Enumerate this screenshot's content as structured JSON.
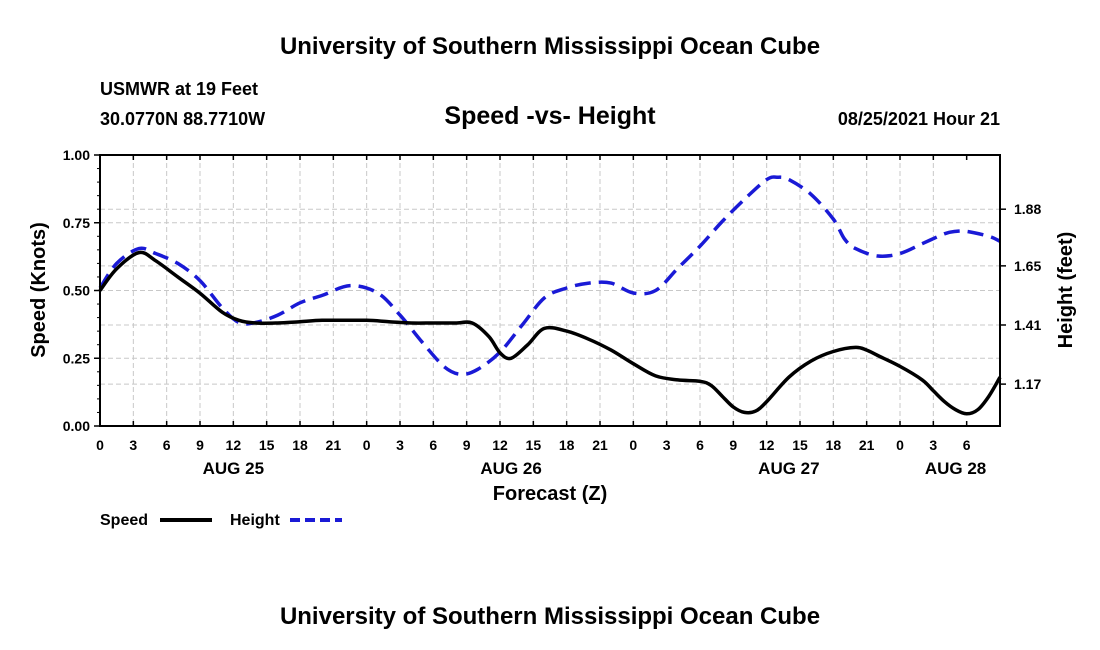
{
  "header": {
    "title_top": "University of Southern Mississippi Ocean Cube",
    "station": "USMWR at 19 Feet",
    "coords": "30.0770N  88.7710W",
    "chart_title": "Speed -vs- Height",
    "timestamp": "08/25/2021 Hour 21",
    "title_bottom": "University of Southern Mississippi Ocean Cube"
  },
  "chart_data": {
    "type": "line",
    "title": "Speed -vs- Height",
    "xlabel": "Forecast (Z)",
    "ylabel_left": "Speed (Knots)",
    "ylabel_right": "Height (feet)",
    "x_range_hours": [
      0,
      81
    ],
    "x_tick_labels": [
      "0",
      "3",
      "6",
      "9",
      "12",
      "15",
      "18",
      "21",
      "0",
      "3",
      "6",
      "9",
      "12",
      "15",
      "18",
      "21",
      "0",
      "3",
      "6",
      "9",
      "12",
      "15",
      "18",
      "21",
      "0",
      "3",
      "6"
    ],
    "day_labels": [
      {
        "label": "AUG 25",
        "hour": 12
      },
      {
        "label": "AUG 26",
        "hour": 37
      },
      {
        "label": "AUG 27",
        "hour": 62
      },
      {
        "label": "AUG 28",
        "hour": 77
      }
    ],
    "left_axis": {
      "min": 0,
      "max": 1,
      "ticks": [
        0,
        0.25,
        0.5,
        0.75,
        1.0
      ],
      "tick_labels": [
        "0.00",
        "0.25",
        "0.50",
        "0.75",
        "1.00"
      ]
    },
    "right_axis": {
      "min": 1.0,
      "max": 2.1,
      "ticks": [
        1.17,
        1.41,
        1.65,
        1.88
      ],
      "tick_labels": [
        "1.17",
        "1.41",
        "1.65",
        "1.88"
      ]
    },
    "grid": true,
    "series": [
      {
        "name": "Speed",
        "axis": "left",
        "color": "#000000",
        "dash": "solid",
        "x": [
          0,
          1.5,
          3.5,
          5,
          7,
          9,
          11,
          12.5,
          14,
          16,
          18,
          20,
          22,
          24,
          26,
          28,
          30,
          32,
          33.5,
          35,
          36,
          37,
          38.5,
          40,
          42,
          44,
          46,
          48,
          50,
          52,
          54,
          55,
          56,
          57,
          58,
          59,
          60,
          62,
          64,
          66,
          68,
          69,
          70,
          72,
          74,
          75,
          76,
          77,
          78,
          79,
          80,
          81
        ],
        "y": [
          0.5,
          0.58,
          0.64,
          0.61,
          0.55,
          0.49,
          0.42,
          0.39,
          0.38,
          0.38,
          0.385,
          0.39,
          0.39,
          0.39,
          0.385,
          0.38,
          0.38,
          0.38,
          0.38,
          0.33,
          0.27,
          0.25,
          0.3,
          0.36,
          0.35,
          0.32,
          0.28,
          0.23,
          0.185,
          0.17,
          0.165,
          0.15,
          0.11,
          0.07,
          0.05,
          0.055,
          0.09,
          0.18,
          0.24,
          0.275,
          0.29,
          0.28,
          0.26,
          0.22,
          0.17,
          0.13,
          0.09,
          0.06,
          0.045,
          0.06,
          0.11,
          0.18
        ]
      },
      {
        "name": "Height",
        "axis": "right",
        "color": "#1a1ad6",
        "dash": "dashed",
        "x": [
          0,
          1.5,
          3.5,
          5,
          7,
          9,
          11,
          12.5,
          14,
          16,
          18,
          20,
          22.5,
          25,
          27,
          29,
          31,
          32.5,
          34,
          36,
          38,
          40,
          42,
          44,
          46,
          48,
          50,
          52,
          54,
          56,
          58,
          60,
          61,
          62,
          64,
          66,
          67,
          68,
          70,
          72,
          74,
          76,
          77,
          78,
          80,
          81
        ],
        "y": [
          1.56,
          1.66,
          1.72,
          1.7,
          1.66,
          1.59,
          1.48,
          1.42,
          1.42,
          1.45,
          1.5,
          1.53,
          1.57,
          1.54,
          1.45,
          1.34,
          1.24,
          1.21,
          1.23,
          1.3,
          1.41,
          1.52,
          1.56,
          1.58,
          1.58,
          1.54,
          1.55,
          1.64,
          1.73,
          1.83,
          1.92,
          2.0,
          2.01,
          2.0,
          1.94,
          1.84,
          1.76,
          1.72,
          1.69,
          1.7,
          1.74,
          1.78,
          1.79,
          1.79,
          1.77,
          1.75
        ]
      }
    ],
    "legend": {
      "position": "bottom-left",
      "entries": [
        {
          "label": "Speed",
          "color": "#000000",
          "dash": "solid"
        },
        {
          "label": "Height",
          "color": "#1a1ad6",
          "dash": "dashed"
        }
      ]
    }
  }
}
